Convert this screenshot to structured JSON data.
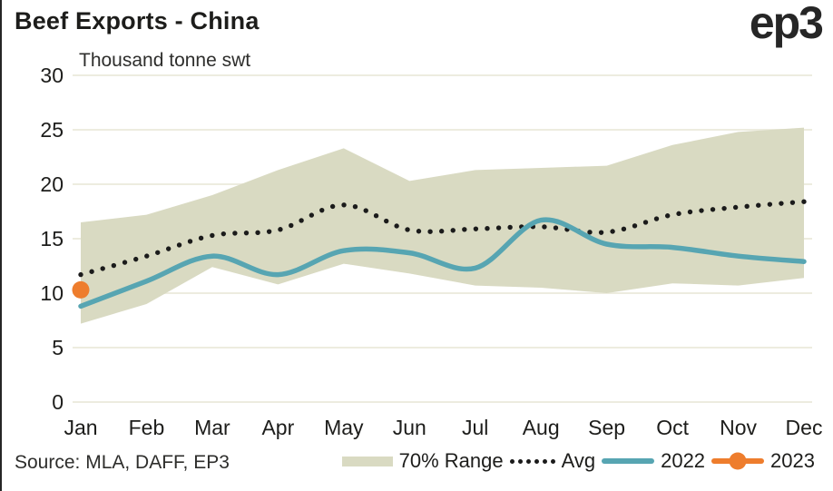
{
  "header": {
    "title": "Beef Exports - China",
    "logo": "ep3"
  },
  "chart_data": {
    "type": "line",
    "title": "Beef Exports - China",
    "ylabel_unit": "Thousand tonne swt",
    "categories": [
      "Jan",
      "Feb",
      "Mar",
      "Apr",
      "May",
      "Jun",
      "Jul",
      "Aug",
      "Sep",
      "Oct",
      "Nov",
      "Dec"
    ],
    "yticks": [
      0,
      5,
      10,
      15,
      20,
      25,
      30
    ],
    "ylim": [
      0,
      30
    ],
    "grid": "horizontal",
    "legend_position": "bottom",
    "series": [
      {
        "name": "70% Range",
        "type": "band",
        "low": [
          7.2,
          9.0,
          12.4,
          10.8,
          12.7,
          11.8,
          10.7,
          10.5,
          10.0,
          10.9,
          10.7,
          11.4
        ],
        "high": [
          16.5,
          17.2,
          19.0,
          21.3,
          23.3,
          20.3,
          21.3,
          21.5,
          21.7,
          23.6,
          24.8,
          25.2
        ]
      },
      {
        "name": "Avg",
        "type": "dotted-line",
        "values": [
          11.7,
          13.4,
          15.3,
          15.8,
          18.1,
          15.8,
          15.9,
          16.1,
          15.6,
          17.2,
          17.9,
          18.4
        ]
      },
      {
        "name": "2022",
        "type": "line",
        "values": [
          8.8,
          11.1,
          13.4,
          11.7,
          13.9,
          13.7,
          12.3,
          16.7,
          14.5,
          14.2,
          13.4,
          12.9
        ]
      },
      {
        "name": "2023",
        "type": "point",
        "values": [
          10.3
        ]
      }
    ]
  },
  "legend": {
    "items": [
      {
        "label": "70% Range"
      },
      {
        "label": "Avg"
      },
      {
        "label": "2022"
      },
      {
        "label": "2023"
      }
    ]
  },
  "footer": {
    "source": "Source: MLA, DAFF, EP3"
  },
  "colors": {
    "band": "#d9dac2",
    "avg": "#1b1b1b",
    "line2022": "#57a5b2",
    "point2023": "#ee7d2d",
    "grid": "#edecdf",
    "text": "#1d1d1b"
  }
}
